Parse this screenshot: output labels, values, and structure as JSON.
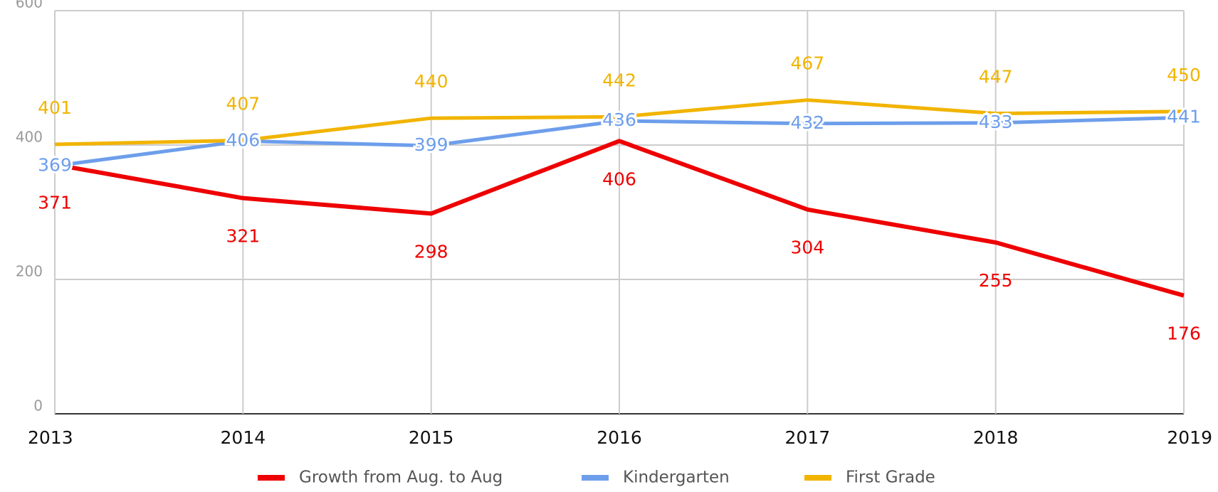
{
  "chart_data": {
    "type": "line",
    "x": [
      2013,
      2014,
      2015,
      2016,
      2017,
      2018,
      2019
    ],
    "xlim": [
      2013,
      2019
    ],
    "xticks": [
      2013,
      2014,
      2015,
      2016,
      2017,
      2018,
      2019
    ],
    "ylim": [
      0,
      600
    ],
    "yticks": [
      0,
      200,
      400,
      600
    ],
    "grid": true,
    "legend": "bottom",
    "series": [
      {
        "name": "Growth from Aug. to Aug",
        "color": "#ee0000",
        "values": [
          371,
          321,
          298,
          406,
          304,
          255,
          176
        ]
      },
      {
        "name": "Kindergarten",
        "color": "#6d9eeb",
        "values": [
          369,
          406,
          399,
          436,
          432,
          433,
          441
        ]
      },
      {
        "name": "First Grade",
        "color": "#f1b400",
        "values": [
          401,
          407,
          440,
          442,
          467,
          447,
          450
        ]
      }
    ]
  }
}
